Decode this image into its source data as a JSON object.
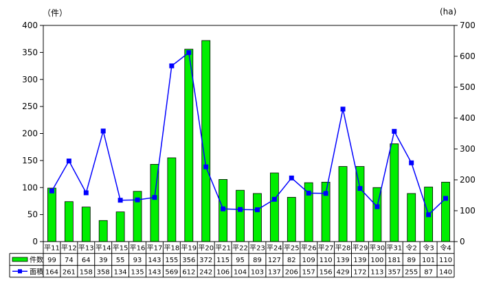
{
  "chart_data": {
    "type": "bar",
    "units": {
      "left": "（件）",
      "right": "(ha)"
    },
    "categories": [
      "平11",
      "平12",
      "平13",
      "平14",
      "平15",
      "平16",
      "平17",
      "平18",
      "平19",
      "平20",
      "平21",
      "平22",
      "平23",
      "平24",
      "平25",
      "平26",
      "平27",
      "平28",
      "平29",
      "平30",
      "平31",
      "令2",
      "令3",
      "令4"
    ],
    "series": [
      {
        "name": "件数",
        "type": "bar",
        "axis": "left",
        "color": "#00ee00",
        "values": [
          99,
          74,
          64,
          39,
          55,
          93,
          143,
          155,
          356,
          372,
          115,
          95,
          89,
          127,
          82,
          109,
          110,
          139,
          139,
          100,
          181,
          89,
          101,
          110
        ]
      },
      {
        "name": "面積",
        "type": "line",
        "axis": "right",
        "color": "#0000ff",
        "values": [
          164,
          261,
          158,
          358,
          134,
          135,
          143,
          569,
          612,
          242,
          106,
          104,
          103,
          137,
          206,
          157,
          156,
          429,
          172,
          113,
          357,
          255,
          87,
          140
        ]
      }
    ],
    "yleft": {
      "min": 0,
      "max": 400,
      "ticks": [
        0,
        50,
        100,
        150,
        200,
        250,
        300,
        350,
        400
      ]
    },
    "yright": {
      "min": 0,
      "max": 700,
      "ticks": [
        0,
        100,
        200,
        300,
        400,
        500,
        600,
        700
      ]
    },
    "legend": "table-below",
    "grid": false
  }
}
